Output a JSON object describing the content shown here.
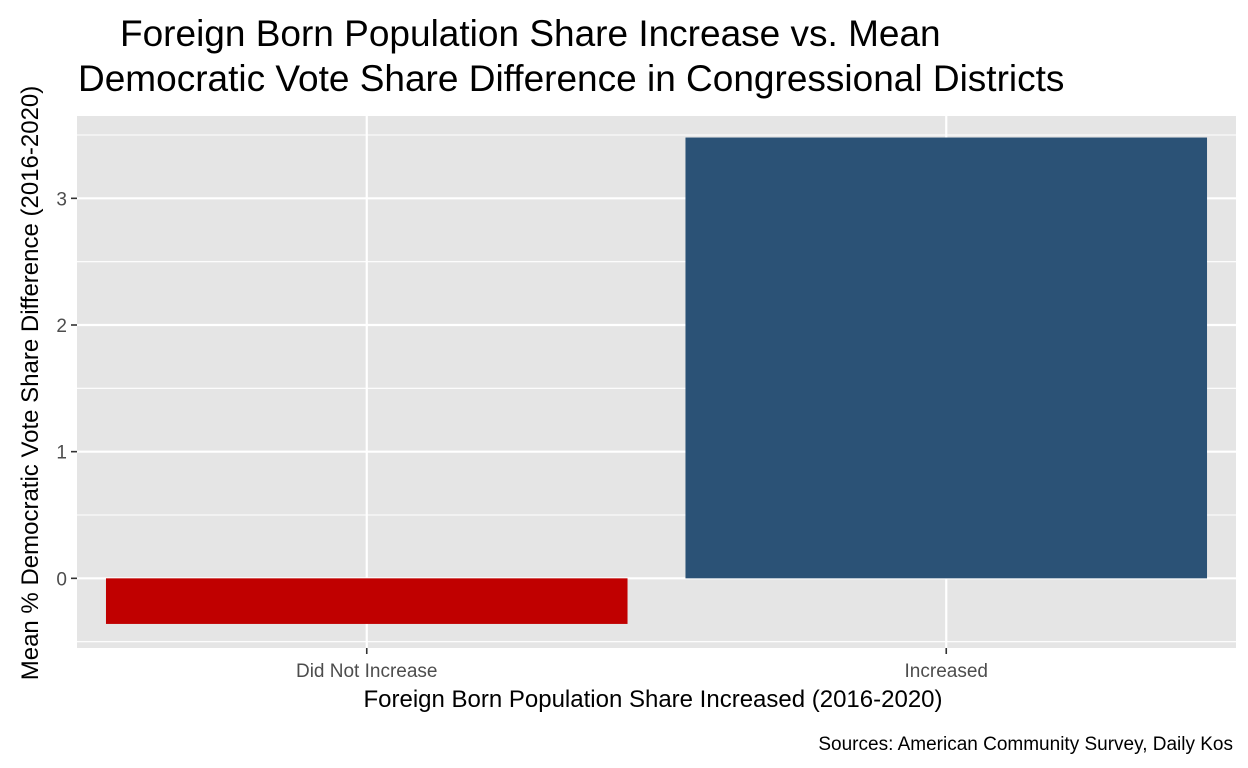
{
  "chart_data": {
    "type": "bar",
    "title_lines": [
      "Foreign Born Population Share Increase vs. Mean",
      "Democratic Vote Share Difference in Congressional Districts"
    ],
    "xlabel": "Foreign Born Population Share Increased (2016-2020)",
    "ylabel": "Mean % Democratic Vote Share Difference (2016-2020)",
    "caption": "Sources: American Community Survey, Daily Kos",
    "categories": [
      "Did Not Increase",
      "Increased"
    ],
    "values": [
      -0.36,
      3.48
    ],
    "colors": [
      "#c00000",
      "#2b5276"
    ],
    "yticks": [
      0,
      1,
      2,
      3
    ],
    "ylim": [
      -0.55,
      3.65
    ],
    "grid": true,
    "panel_background": "#e5e5e5",
    "legend": "none"
  }
}
